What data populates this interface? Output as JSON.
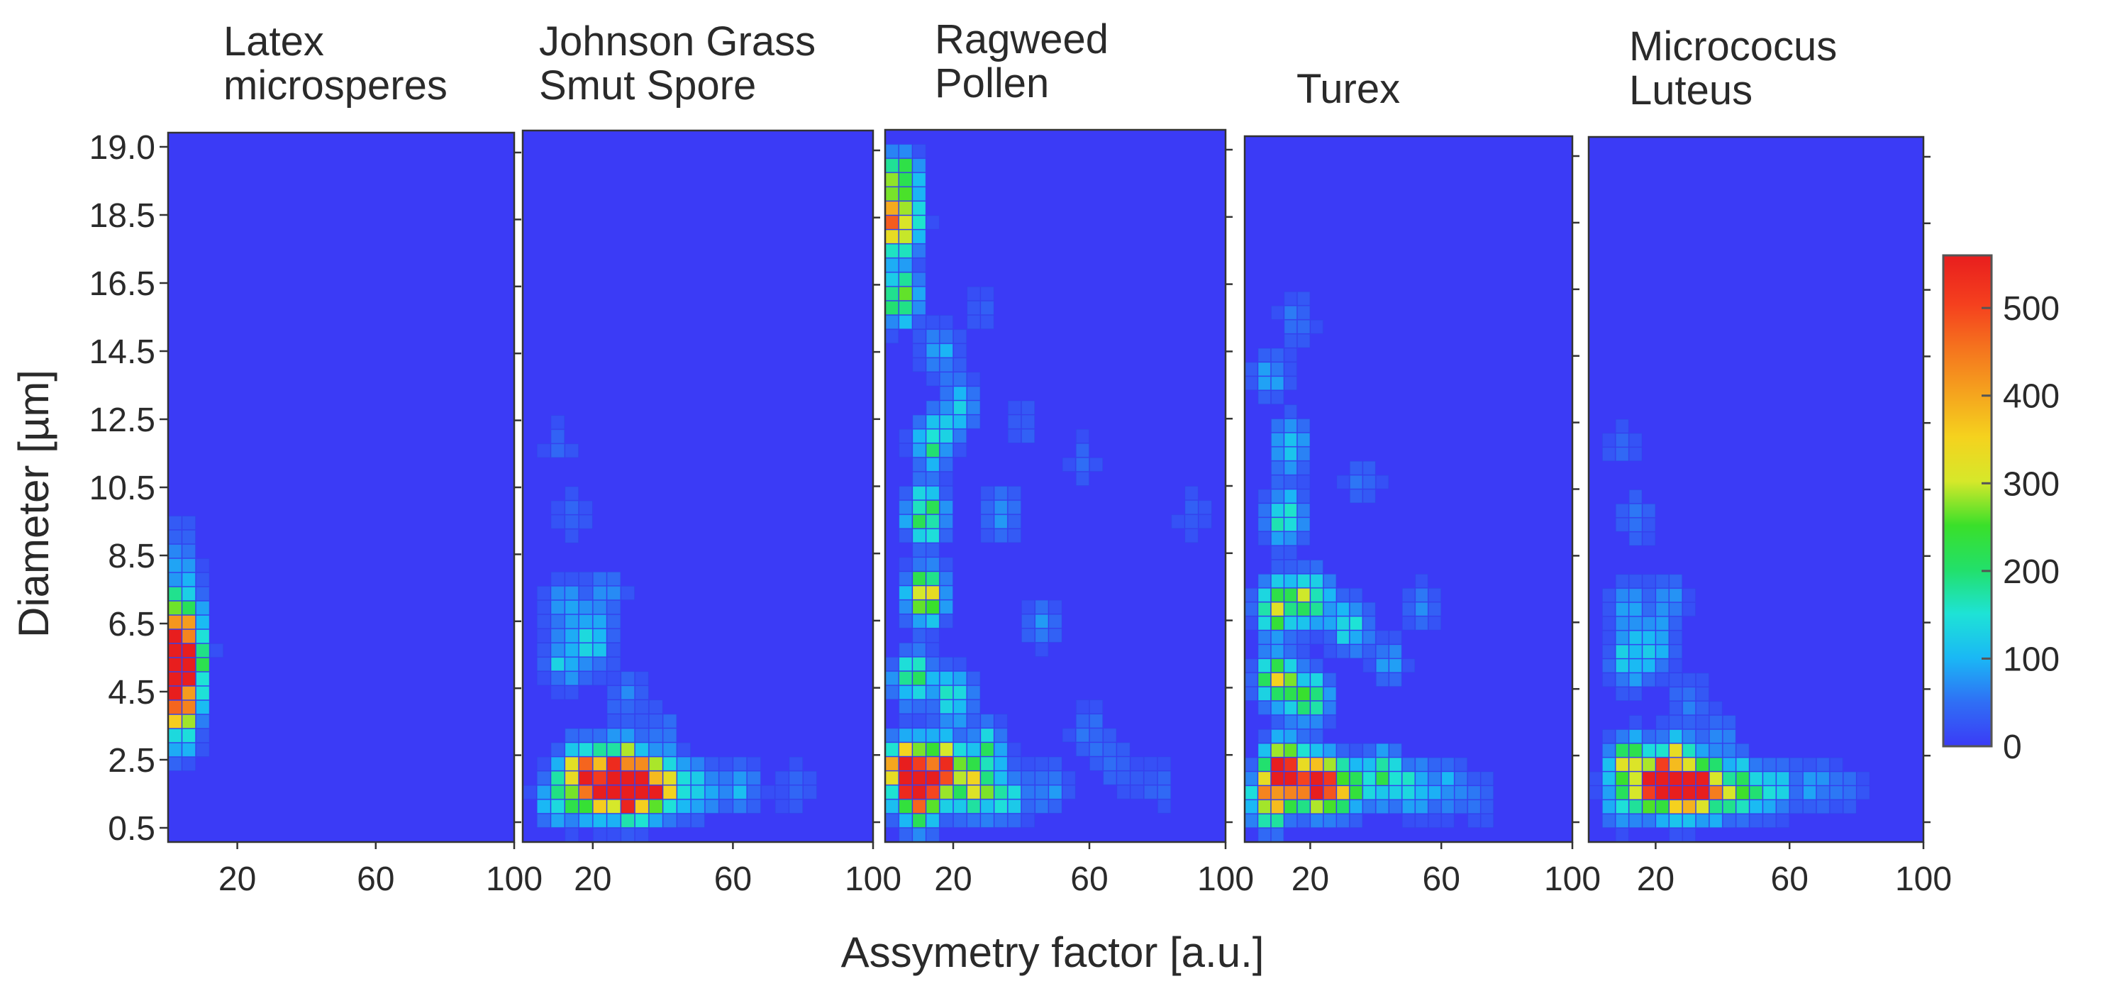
{
  "chart_data": {
    "type": "heatmap",
    "xlabel": "Assymetry factor [a.u.]",
    "ylabel": "Diameter [µm]",
    "x_ticks": [
      "20",
      "60",
      "100"
    ],
    "y_ticks": [
      "19.0",
      "18.5",
      "16.5",
      "14.5",
      "12.5",
      "10.5",
      "8.5",
      "6.5",
      "4.5",
      "2.5",
      "0.5"
    ],
    "xlim": [
      0,
      100
    ],
    "colorbar": {
      "ticks": [
        "0",
        "100",
        "200",
        "300",
        "400",
        "500"
      ],
      "range": [
        0,
        560
      ],
      "colormap": "jet"
    },
    "grid": false,
    "panels": [
      {
        "title": [
          "Latex",
          "microsperes"
        ],
        "spots": [
          [
            3,
            5.0,
            560
          ],
          [
            3,
            4.4,
            430
          ],
          [
            3,
            5.6,
            380
          ],
          [
            3,
            6.2,
            200
          ],
          [
            3,
            3.8,
            300
          ],
          [
            3,
            2.9,
            120
          ],
          [
            3,
            7.5,
            70
          ],
          [
            3,
            8.5,
            40
          ],
          [
            6,
            6.8,
            50
          ]
        ]
      },
      {
        "title": [
          "Johnson Grass",
          "Smut Spore"
        ],
        "spots": [
          [
            28,
            1.5,
            560
          ],
          [
            20,
            1.5,
            450
          ],
          [
            34,
            1.5,
            450
          ],
          [
            16,
            2.0,
            240
          ],
          [
            28,
            2.2,
            220
          ],
          [
            40,
            1.5,
            260
          ],
          [
            50,
            1.5,
            140
          ],
          [
            62,
            1.5,
            90
          ],
          [
            78,
            1.5,
            45
          ],
          [
            10,
            1.2,
            150
          ],
          [
            12,
            5.0,
            120
          ],
          [
            20,
            5.5,
            110
          ],
          [
            12,
            6.5,
            90
          ],
          [
            24,
            6.8,
            70
          ],
          [
            14,
            9.0,
            50
          ],
          [
            10,
            11.0,
            40
          ],
          [
            30,
            4.0,
            60
          ],
          [
            40,
            3.0,
            55
          ]
        ]
      },
      {
        "title": [
          "Ragweed",
          "Pollen"
        ],
        "spots": [
          [
            6,
            2.0,
            560
          ],
          [
            16,
            2.0,
            500
          ],
          [
            10,
            1.2,
            440
          ],
          [
            26,
            1.5,
            300
          ],
          [
            4,
            17.0,
            430
          ],
          [
            4,
            18.2,
            300
          ],
          [
            4,
            15.0,
            260
          ],
          [
            12,
            6.8,
            320
          ],
          [
            12,
            9.0,
            260
          ],
          [
            14,
            11.0,
            180
          ],
          [
            8,
            4.5,
            200
          ],
          [
            20,
            4.0,
            160
          ],
          [
            30,
            2.5,
            170
          ],
          [
            36,
            1.2,
            130
          ],
          [
            48,
            1.5,
            80
          ],
          [
            22,
            12.0,
            110
          ],
          [
            16,
            13.5,
            90
          ],
          [
            34,
            9.0,
            90
          ],
          [
            46,
            6.0,
            70
          ],
          [
            60,
            3.0,
            60
          ],
          [
            68,
            2.0,
            50
          ],
          [
            80,
            1.5,
            45
          ],
          [
            90,
            9.0,
            40
          ],
          [
            58,
            10.5,
            40
          ],
          [
            40,
            11.5,
            45
          ],
          [
            28,
            14.5,
            40
          ]
        ]
      },
      {
        "title": [
          "Turex"
        ],
        "spots": [
          [
            12,
            2.0,
            560
          ],
          [
            22,
            1.6,
            500
          ],
          [
            8,
            1.2,
            380
          ],
          [
            30,
            1.5,
            320
          ],
          [
            10,
            4.5,
            330
          ],
          [
            20,
            4.0,
            220
          ],
          [
            10,
            6.5,
            300
          ],
          [
            20,
            6.8,
            250
          ],
          [
            32,
            6.0,
            160
          ],
          [
            12,
            9.0,
            200
          ],
          [
            14,
            11.0,
            140
          ],
          [
            42,
            1.8,
            210
          ],
          [
            52,
            1.5,
            140
          ],
          [
            62,
            1.5,
            90
          ],
          [
            72,
            1.2,
            50
          ],
          [
            8,
            13.0,
            90
          ],
          [
            16,
            14.5,
            60
          ],
          [
            44,
            5.0,
            80
          ],
          [
            54,
            6.5,
            60
          ],
          [
            36,
            10.0,
            60
          ]
        ]
      },
      {
        "title": [
          "Micrococus",
          "Luteus"
        ],
        "spots": [
          [
            28,
            1.5,
            560
          ],
          [
            20,
            1.6,
            470
          ],
          [
            36,
            1.5,
            430
          ],
          [
            12,
            2.2,
            260
          ],
          [
            26,
            2.3,
            220
          ],
          [
            46,
            1.5,
            220
          ],
          [
            56,
            1.5,
            130
          ],
          [
            68,
            1.5,
            80
          ],
          [
            78,
            1.5,
            45
          ],
          [
            10,
            1.2,
            160
          ],
          [
            12,
            5.0,
            130
          ],
          [
            20,
            5.5,
            110
          ],
          [
            12,
            6.5,
            100
          ],
          [
            24,
            6.8,
            70
          ],
          [
            14,
            9.0,
            60
          ],
          [
            10,
            11.0,
            45
          ],
          [
            30,
            4.0,
            60
          ],
          [
            40,
            3.0,
            60
          ]
        ]
      }
    ]
  }
}
